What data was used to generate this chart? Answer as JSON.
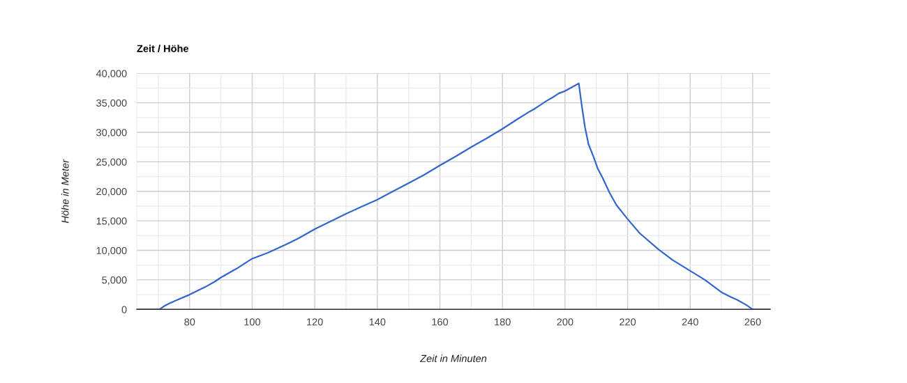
{
  "chart_data": {
    "type": "line",
    "title": "Zeit / Höhe",
    "xlabel": "Zeit in Minuten",
    "ylabel": "Höhe in Meter",
    "x": [
      63.1,
      70.3,
      72,
      73.5,
      76,
      80,
      85,
      88,
      90,
      95,
      100,
      105,
      110,
      112,
      115,
      120,
      125,
      130,
      135,
      140,
      145,
      150,
      155,
      160,
      165,
      170,
      175,
      180,
      185,
      188,
      190,
      192,
      194,
      196,
      198,
      200,
      204.4,
      205.3,
      206.4,
      207.5,
      209,
      210.5,
      212,
      214.2,
      216.4,
      220,
      223.9,
      229.8,
      234.3,
      239.8,
      244.7,
      250,
      253,
      255.1,
      258.1,
      260,
      265.6
    ],
    "series": [
      {
        "color": "#3366cc",
        "values": [
          0,
          0,
          600,
          1000,
          1600,
          2500,
          3800,
          4700,
          5400,
          6900,
          8600,
          9600,
          10800,
          11300,
          12100,
          13600,
          14900,
          16200,
          17400,
          18600,
          20000,
          21400,
          22800,
          24400,
          25900,
          27500,
          29000,
          30600,
          32300,
          33300,
          33900,
          34600,
          35300,
          35900,
          36600,
          37000,
          38300,
          34700,
          30800,
          28000,
          26000,
          23800,
          22300,
          19800,
          17700,
          15300,
          12900,
          10200,
          8400,
          6600,
          5000,
          2900,
          2100,
          1600,
          700,
          0,
          0
        ]
      }
    ],
    "xlim": [
      63.1,
      265.6
    ],
    "xticks": [
      {
        "value": 70,
        "label": null
      },
      80,
      {
        "value": 90,
        "label": null
      },
      100,
      {
        "value": 110,
        "label": null
      },
      120,
      {
        "value": 130,
        "label": null
      },
      140,
      {
        "value": 150,
        "label": null
      },
      160,
      {
        "value": 170,
        "label": null
      },
      180,
      {
        "value": 190,
        "label": null
      },
      200,
      {
        "value": 210,
        "label": null
      },
      220,
      {
        "value": 230,
        "label": null
      },
      240,
      {
        "value": 250,
        "label": null
      },
      260
    ],
    "ylim": [
      0,
      40000
    ],
    "yticks": [
      0,
      {
        "value": 2500,
        "label": null
      },
      {
        "value": 5000,
        "label": "5,000"
      },
      {
        "value": 7500,
        "label": null
      },
      {
        "value": 10000,
        "label": "10,000"
      },
      {
        "value": 12500,
        "label": null
      },
      {
        "value": 15000,
        "label": "15,000"
      },
      {
        "value": 17500,
        "label": null
      },
      {
        "value": 20000,
        "label": "20,000"
      },
      {
        "value": 22500,
        "label": null
      },
      {
        "value": 25000,
        "label": "25,000"
      },
      {
        "value": 27500,
        "label": null
      },
      {
        "value": 30000,
        "label": "30,000"
      },
      {
        "value": 32500,
        "label": null
      },
      {
        "value": 35000,
        "label": "35,000"
      },
      {
        "value": 37500,
        "label": null
      },
      {
        "value": 40000,
        "label": "40,000"
      }
    ],
    "grid": true,
    "marker": "none",
    "line_style": "solid"
  }
}
